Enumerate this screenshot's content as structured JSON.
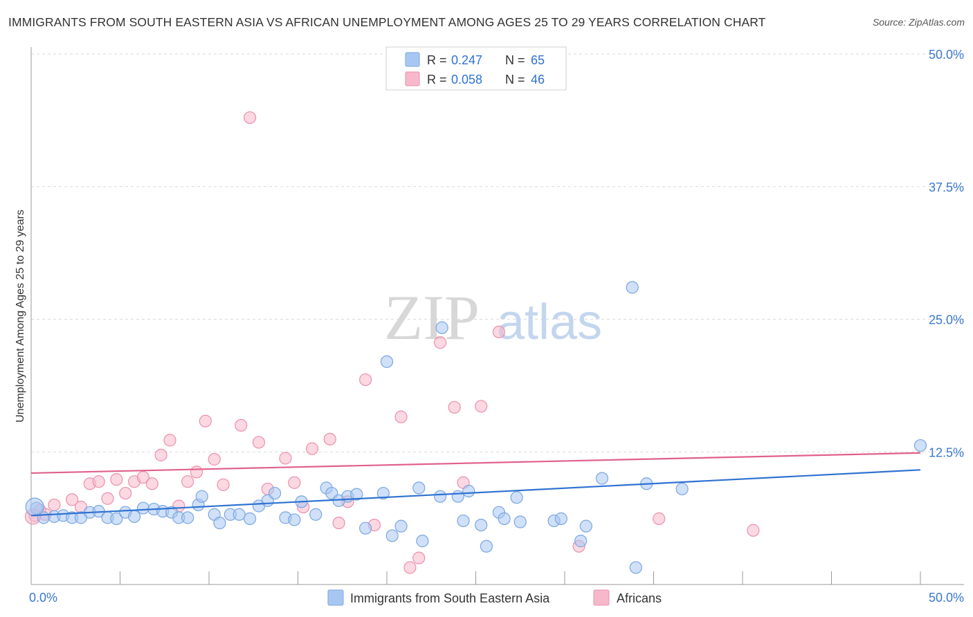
{
  "title": "IMMIGRANTS FROM SOUTH EASTERN ASIA VS AFRICAN UNEMPLOYMENT AMONG AGES 25 TO 29 YEARS CORRELATION CHART",
  "source": "Source: ZipAtlas.com",
  "watermark": {
    "zip": "ZIP",
    "atlas": "atlas"
  },
  "legend_top": [
    {
      "r_label": "R = ",
      "r_value": "0.247",
      "n_label": "N = ",
      "n_value": "65",
      "color": "#a7c7f2"
    },
    {
      "r_label": "R = ",
      "r_value": "0.058",
      "n_label": "N = ",
      "n_value": "46",
      "color": "#f7b8cb"
    }
  ],
  "chart_data": {
    "type": "scatter",
    "title": "IMMIGRANTS FROM SOUTH EASTERN ASIA VS AFRICAN UNEMPLOYMENT AMONG AGES 25 TO 29 YEARS CORRELATION CHART",
    "xlabel": "",
    "ylabel": "Unemployment Among Ages 25 to 29 years",
    "xlim": [
      0,
      50
    ],
    "ylim": [
      0,
      50
    ],
    "x_tick_labels": [
      "0.0%",
      "50.0%"
    ],
    "y_tick_labels": [
      "12.5%",
      "25.0%",
      "37.5%",
      "50.0%"
    ],
    "y_ticks": [
      12.5,
      25.0,
      37.5,
      50.0
    ],
    "grid": true,
    "legend_position": "bottom",
    "series": [
      {
        "name": "Immigrants from South Eastern Asia",
        "color": "#a7c7f2",
        "line_color": "#2f72d0",
        "trend": [
          [
            0,
            6.5
          ],
          [
            50,
            10.8
          ]
        ],
        "points": [
          [
            0.3,
            7.2
          ],
          [
            0.7,
            6.3
          ],
          [
            1.3,
            6.4
          ],
          [
            1.8,
            6.5
          ],
          [
            2.3,
            6.3
          ],
          [
            2.8,
            6.3
          ],
          [
            3.3,
            6.8
          ],
          [
            3.8,
            6.9
          ],
          [
            4.3,
            6.3
          ],
          [
            4.8,
            6.2
          ],
          [
            5.3,
            6.8
          ],
          [
            5.8,
            6.4
          ],
          [
            6.3,
            7.2
          ],
          [
            6.9,
            7.1
          ],
          [
            7.4,
            6.9
          ],
          [
            7.9,
            6.8
          ],
          [
            8.3,
            6.3
          ],
          [
            8.8,
            6.3
          ],
          [
            9.4,
            7.5
          ],
          [
            9.6,
            8.3
          ],
          [
            10.3,
            6.6
          ],
          [
            10.6,
            5.8
          ],
          [
            11.2,
            6.6
          ],
          [
            11.7,
            6.6
          ],
          [
            12.3,
            6.2
          ],
          [
            12.8,
            7.4
          ],
          [
            13.3,
            7.9
          ],
          [
            13.7,
            8.6
          ],
          [
            14.3,
            6.3
          ],
          [
            14.8,
            6.1
          ],
          [
            15.2,
            7.8
          ],
          [
            16.0,
            6.6
          ],
          [
            16.6,
            9.1
          ],
          [
            16.9,
            8.6
          ],
          [
            17.3,
            7.9
          ],
          [
            17.8,
            8.3
          ],
          [
            18.3,
            8.5
          ],
          [
            18.8,
            5.3
          ],
          [
            19.8,
            8.6
          ],
          [
            20.0,
            21.0
          ],
          [
            20.3,
            4.6
          ],
          [
            20.8,
            5.5
          ],
          [
            21.8,
            9.1
          ],
          [
            22.0,
            4.1
          ],
          [
            23.0,
            8.3
          ],
          [
            23.1,
            24.2
          ],
          [
            24.0,
            8.3
          ],
          [
            24.3,
            6.0
          ],
          [
            24.6,
            8.8
          ],
          [
            25.3,
            5.6
          ],
          [
            25.6,
            3.6
          ],
          [
            26.3,
            6.8
          ],
          [
            26.6,
            6.2
          ],
          [
            27.3,
            8.2
          ],
          [
            27.5,
            5.9
          ],
          [
            29.4,
            6.0
          ],
          [
            29.8,
            6.2
          ],
          [
            30.9,
            4.1
          ],
          [
            31.2,
            5.5
          ],
          [
            32.1,
            10.0
          ],
          [
            33.8,
            28.0
          ],
          [
            34.0,
            1.6
          ],
          [
            34.6,
            9.5
          ],
          [
            36.6,
            9.0
          ],
          [
            50.0,
            13.1
          ]
        ]
      },
      {
        "name": "Africans",
        "color": "#f7b8cb",
        "line_color": "#e0608a",
        "trend": [
          [
            0,
            10.5
          ],
          [
            50,
            12.4
          ]
        ],
        "points": [
          [
            0.2,
            6.5
          ],
          [
            0.5,
            7.0
          ],
          [
            0.8,
            6.6
          ],
          [
            1.3,
            7.5
          ],
          [
            2.3,
            8.0
          ],
          [
            2.8,
            7.3
          ],
          [
            3.3,
            9.5
          ],
          [
            3.8,
            9.7
          ],
          [
            4.3,
            8.1
          ],
          [
            4.8,
            9.9
          ],
          [
            5.3,
            8.6
          ],
          [
            5.8,
            9.7
          ],
          [
            6.3,
            10.1
          ],
          [
            6.8,
            9.5
          ],
          [
            7.3,
            12.2
          ],
          [
            7.8,
            13.6
          ],
          [
            8.3,
            7.4
          ],
          [
            8.8,
            9.7
          ],
          [
            9.3,
            10.6
          ],
          [
            9.8,
            15.4
          ],
          [
            10.3,
            11.8
          ],
          [
            10.8,
            9.4
          ],
          [
            11.8,
            15.0
          ],
          [
            12.3,
            44.0
          ],
          [
            12.8,
            13.4
          ],
          [
            13.3,
            9.0
          ],
          [
            14.3,
            11.9
          ],
          [
            14.8,
            9.6
          ],
          [
            15.3,
            7.3
          ],
          [
            15.8,
            12.8
          ],
          [
            16.8,
            13.7
          ],
          [
            17.3,
            5.8
          ],
          [
            17.8,
            7.8
          ],
          [
            18.8,
            19.3
          ],
          [
            19.3,
            5.6
          ],
          [
            20.8,
            15.8
          ],
          [
            21.3,
            1.6
          ],
          [
            21.8,
            2.5
          ],
          [
            23.0,
            22.8
          ],
          [
            23.8,
            16.7
          ],
          [
            24.3,
            9.6
          ],
          [
            25.3,
            16.8
          ],
          [
            26.3,
            23.8
          ],
          [
            30.8,
            3.6
          ],
          [
            35.3,
            6.2
          ],
          [
            40.6,
            5.1
          ]
        ]
      }
    ]
  }
}
